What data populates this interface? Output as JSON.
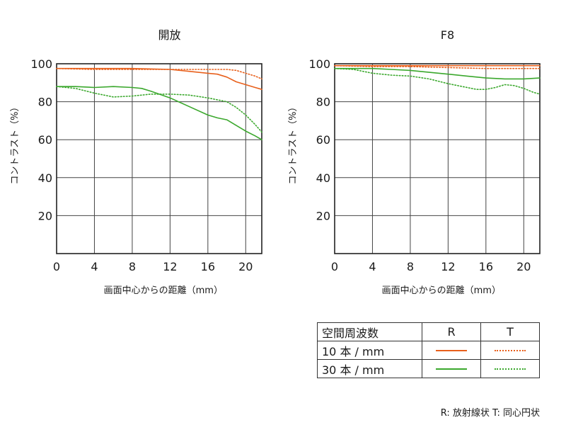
{
  "chart_data": [
    {
      "type": "line",
      "title": "開放",
      "xlabel": "画面中心からの距離（mm）",
      "ylabel": "コントラスト（%）",
      "xlim": [
        0,
        21.7
      ],
      "ylim": [
        0,
        100
      ],
      "xticks": [
        0,
        4,
        8,
        12,
        16,
        20
      ],
      "yticks": [
        20,
        40,
        60,
        80,
        100
      ],
      "grid": true,
      "series": [
        {
          "name": "10本/mm R",
          "x": [
            0,
            4,
            8,
            12,
            14,
            16,
            17,
            18,
            19,
            20,
            21,
            21.7
          ],
          "y": [
            97.5,
            97.5,
            97.5,
            97,
            96,
            95,
            94.5,
            93,
            90.5,
            89,
            87.5,
            86.5
          ]
        },
        {
          "name": "10本/mm T",
          "x": [
            0,
            4,
            8,
            12,
            14,
            16,
            18,
            19,
            20,
            21,
            21.7
          ],
          "y": [
            97.5,
            97,
            97,
            97,
            97,
            97,
            97,
            96.5,
            95,
            93.5,
            92
          ]
        },
        {
          "name": "30本/mm R",
          "x": [
            0,
            2,
            4,
            6,
            8,
            9,
            10,
            12,
            14,
            16,
            17,
            18,
            19,
            20,
            21,
            21.7
          ],
          "y": [
            88,
            88,
            87.5,
            88,
            87.5,
            87,
            85.5,
            82,
            77.5,
            73,
            71.5,
            70.5,
            67.5,
            64.5,
            62,
            60
          ]
        },
        {
          "name": "30本/mm T",
          "x": [
            0,
            2,
            4,
            6,
            8,
            10,
            12,
            14,
            16,
            18,
            19,
            20,
            21,
            21.7
          ],
          "y": [
            88,
            87,
            84.5,
            82.5,
            83,
            84,
            84,
            83.5,
            82,
            80,
            77,
            73,
            68,
            64
          ]
        }
      ]
    },
    {
      "type": "line",
      "title": "F8",
      "xlabel": "画面中心からの距離（mm）",
      "ylabel": "コントラスト（%）",
      "xlim": [
        0,
        21.7
      ],
      "ylim": [
        0,
        100
      ],
      "xticks": [
        0,
        4,
        8,
        12,
        16,
        20
      ],
      "yticks": [
        20,
        40,
        60,
        80,
        100
      ],
      "grid": true,
      "series": [
        {
          "name": "10本/mm R",
          "x": [
            0,
            4,
            8,
            12,
            16,
            20,
            21.7
          ],
          "y": [
            99,
            99,
            99,
            99,
            99,
            99,
            99
          ]
        },
        {
          "name": "10本/mm T",
          "x": [
            0,
            4,
            8,
            12,
            16,
            18,
            20,
            21.7
          ],
          "y": [
            99,
            98.5,
            98.5,
            98,
            97.5,
            97.5,
            97.5,
            97.5
          ]
        },
        {
          "name": "30本/mm R",
          "x": [
            0,
            2,
            4,
            6,
            8,
            10,
            12,
            14,
            16,
            18,
            20,
            21.7
          ],
          "y": [
            97.5,
            97.5,
            97.5,
            97,
            96.5,
            95.5,
            94.5,
            93.5,
            92.5,
            92,
            92,
            92.5
          ]
        },
        {
          "name": "30本/mm T",
          "x": [
            0,
            2,
            4,
            6,
            8,
            10,
            12,
            14,
            15,
            16,
            17,
            18,
            19,
            20,
            21,
            21.7
          ],
          "y": [
            97.5,
            97,
            95,
            94,
            93.5,
            92,
            89.5,
            87.5,
            86.5,
            86.5,
            87.5,
            89,
            88.5,
            87,
            85,
            84
          ]
        }
      ]
    }
  ],
  "colors": {
    "r_line": "#e8601c",
    "t_line": "#e8601c",
    "green": "#3ba82d",
    "grid": "#444444"
  },
  "legend": {
    "header": "空間周波数",
    "col_r": "R",
    "col_t": "T",
    "rows": [
      "10 本 / mm",
      "30 本 / mm"
    ]
  },
  "note": "R: 放射線状  T: 同心円状"
}
